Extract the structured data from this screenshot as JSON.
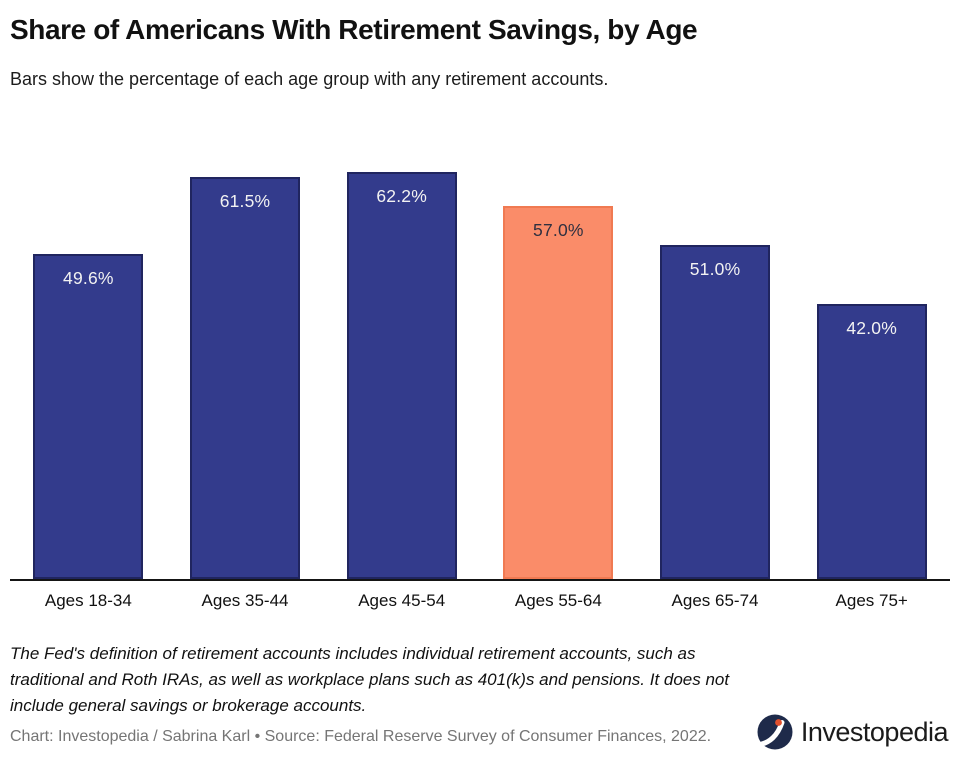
{
  "header": {
    "title": "Share of Americans With Retirement Savings, by Age",
    "subtitle": "Bars show the percentage of each age group with any retirement accounts."
  },
  "chart_data": {
    "type": "bar",
    "categories": [
      "Ages 18-34",
      "Ages 35-44",
      "Ages 45-54",
      "Ages 55-64",
      "Ages 65-74",
      "Ages 75+"
    ],
    "values": [
      49.6,
      61.5,
      62.2,
      57.0,
      51.0,
      42.0
    ],
    "value_labels": [
      "49.6%",
      "61.5%",
      "62.2%",
      "57.0%",
      "51.0%",
      "42.0%"
    ],
    "highlight_index": 3,
    "title": "Share of Americans With Retirement Savings, by Age",
    "xlabel": "",
    "ylabel": "",
    "ylim": [
      0,
      65
    ],
    "grid": false,
    "legend": false,
    "y_axis_visible": false,
    "colors": {
      "bar_fill": "#333B8C",
      "bar_border": "#20255F",
      "highlight_fill": "#FA8C69",
      "highlight_border": "#F07A52",
      "label_on_bar": "#F2F2F2",
      "label_on_highlight": "#2F3040",
      "axis_line": "#151515"
    }
  },
  "footer": {
    "note": "The Fed's definition of retirement accounts includes individual retirement accounts, such as traditional and Roth IRAs, as well as workplace plans such as 401(k)s and pensions. It does not include general savings or brokerage accounts.",
    "credit": "Chart: Investopedia / Sabrina Karl • Source: Federal Reserve Survey of Consumer Finances, 2022.",
    "logo": {
      "icon": "investopedia-mark",
      "text": "Investopedia",
      "mark_bg": "#1E2A4A",
      "mark_dot": "#E0502E"
    }
  }
}
